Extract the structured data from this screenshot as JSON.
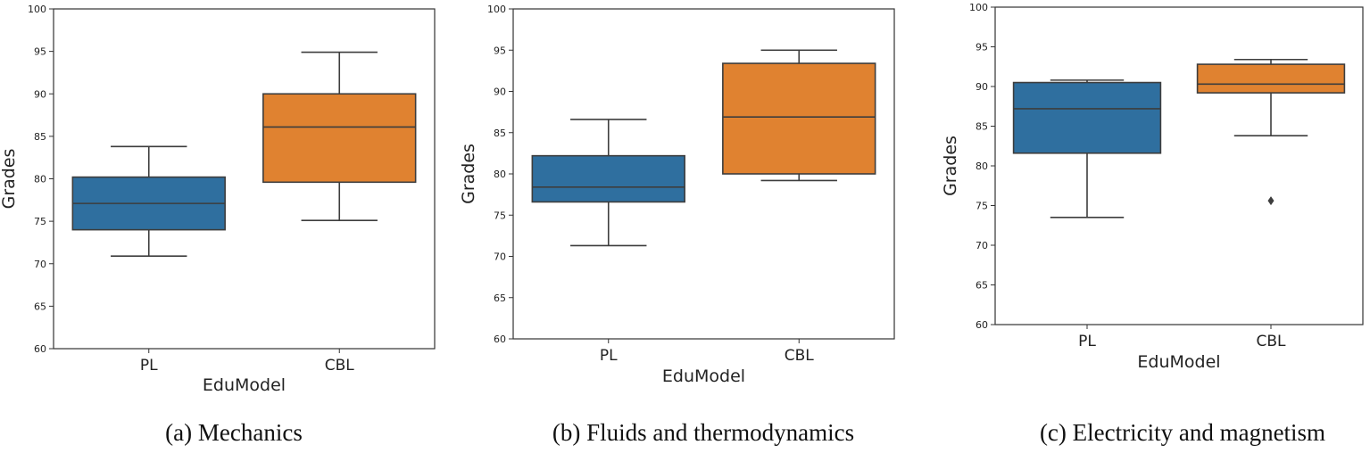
{
  "chart_data": [
    {
      "type": "box",
      "caption": "(a) Mechanics",
      "xlabel": "EduModel",
      "ylabel": "Grades",
      "ylim": [
        60,
        100
      ],
      "yticks": [
        60,
        65,
        70,
        75,
        80,
        85,
        90,
        95,
        100
      ],
      "categories": [
        "PL",
        "CBL"
      ],
      "colors": [
        "#2f6f9f",
        "#e08230"
      ],
      "boxes": [
        {
          "category": "PL",
          "whisker_low": 70.9,
          "q1": 74.0,
          "median": 77.1,
          "q3": 80.2,
          "whisker_high": 83.8,
          "outliers": []
        },
        {
          "category": "CBL",
          "whisker_low": 75.1,
          "q1": 79.6,
          "median": 86.1,
          "q3": 90.0,
          "whisker_high": 94.9,
          "outliers": []
        }
      ]
    },
    {
      "type": "box",
      "caption": "(b) Fluids and thermodynamics",
      "xlabel": "EduModel",
      "ylabel": "Grades",
      "ylim": [
        60,
        100
      ],
      "yticks": [
        60,
        65,
        70,
        75,
        80,
        85,
        90,
        95,
        100
      ],
      "categories": [
        "PL",
        "CBL"
      ],
      "colors": [
        "#2f6f9f",
        "#e08230"
      ],
      "boxes": [
        {
          "category": "PL",
          "whisker_low": 71.3,
          "q1": 76.6,
          "median": 78.4,
          "q3": 82.2,
          "whisker_high": 86.6,
          "outliers": []
        },
        {
          "category": "CBL",
          "whisker_low": 79.2,
          "q1": 80.0,
          "median": 86.9,
          "q3": 93.4,
          "whisker_high": 95.0,
          "outliers": []
        }
      ]
    },
    {
      "type": "box",
      "caption": "(c) Electricity and magnetism",
      "xlabel": "EduModel",
      "ylabel": "Grades",
      "ylim": [
        60,
        100
      ],
      "yticks": [
        60,
        65,
        70,
        75,
        80,
        85,
        90,
        95,
        100
      ],
      "categories": [
        "PL",
        "CBL"
      ],
      "colors": [
        "#2f6f9f",
        "#e08230"
      ],
      "boxes": [
        {
          "category": "PL",
          "whisker_low": 73.5,
          "q1": 81.6,
          "median": 87.2,
          "q3": 90.5,
          "whisker_high": 90.8,
          "outliers": []
        },
        {
          "category": "CBL",
          "whisker_low": 83.8,
          "q1": 89.2,
          "median": 90.3,
          "q3": 92.8,
          "whisker_high": 93.4,
          "outliers": [
            75.6
          ]
        }
      ]
    }
  ]
}
